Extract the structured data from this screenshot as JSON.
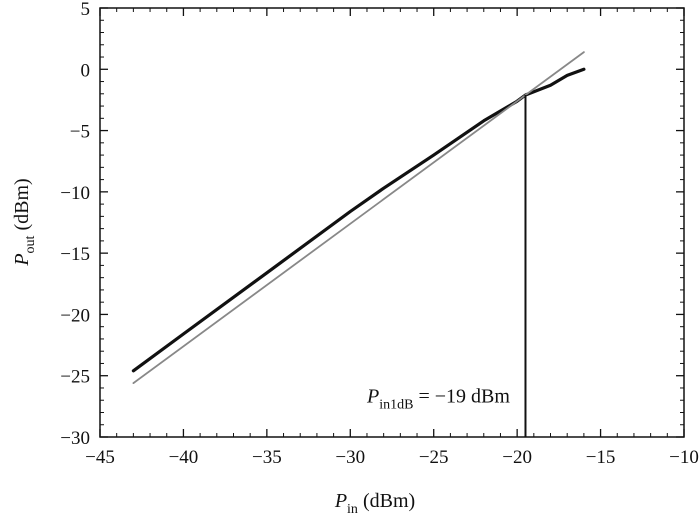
{
  "chart_data": {
    "type": "line",
    "xlabel": {
      "main": "P",
      "sub": "in",
      "unit": " (dBm)"
    },
    "ylabel": {
      "main": "P",
      "sub": "out",
      "unit": " (dBm)"
    },
    "xlim": [
      -45,
      -10
    ],
    "ylim": [
      -30,
      5
    ],
    "xticks": [
      -45,
      -40,
      -35,
      -30,
      -25,
      -20,
      -15,
      -10
    ],
    "yticks": [
      -30,
      -25,
      -20,
      -15,
      -10,
      -5,
      0,
      5
    ],
    "x_tick_labels": [
      "−45",
      "−40",
      "−35",
      "−30",
      "−25",
      "−20",
      "−15",
      "−10"
    ],
    "y_tick_labels": [
      "−30",
      "−25",
      "−20",
      "−15",
      "−10",
      "−5",
      "0",
      "5"
    ],
    "grid": false,
    "series": [
      {
        "style": "thick-black",
        "color": "#111111",
        "points": [
          [
            -43,
            -24.6
          ],
          [
            -40,
            -21.6
          ],
          [
            -35,
            -16.6
          ],
          [
            -30,
            -11.6
          ],
          [
            -28,
            -9.7
          ],
          [
            -25,
            -7.0
          ],
          [
            -22,
            -4.2
          ],
          [
            -20,
            -2.6
          ],
          [
            -19.5,
            -2.1
          ],
          [
            -18,
            -1.3
          ],
          [
            -17,
            -0.5
          ],
          [
            -16,
            0.0
          ]
        ]
      },
      {
        "style": "thin-gray",
        "color": "#888888",
        "points": [
          [
            -43,
            -25.6
          ],
          [
            -16,
            1.4
          ]
        ]
      }
    ],
    "vline": {
      "x": -19.5,
      "y_from": -30,
      "y_to": -2.1
    },
    "annotation": {
      "main": "P",
      "sub": "in1dB",
      "text": " = −19 dBm",
      "x": -29,
      "y": -27.2
    }
  }
}
